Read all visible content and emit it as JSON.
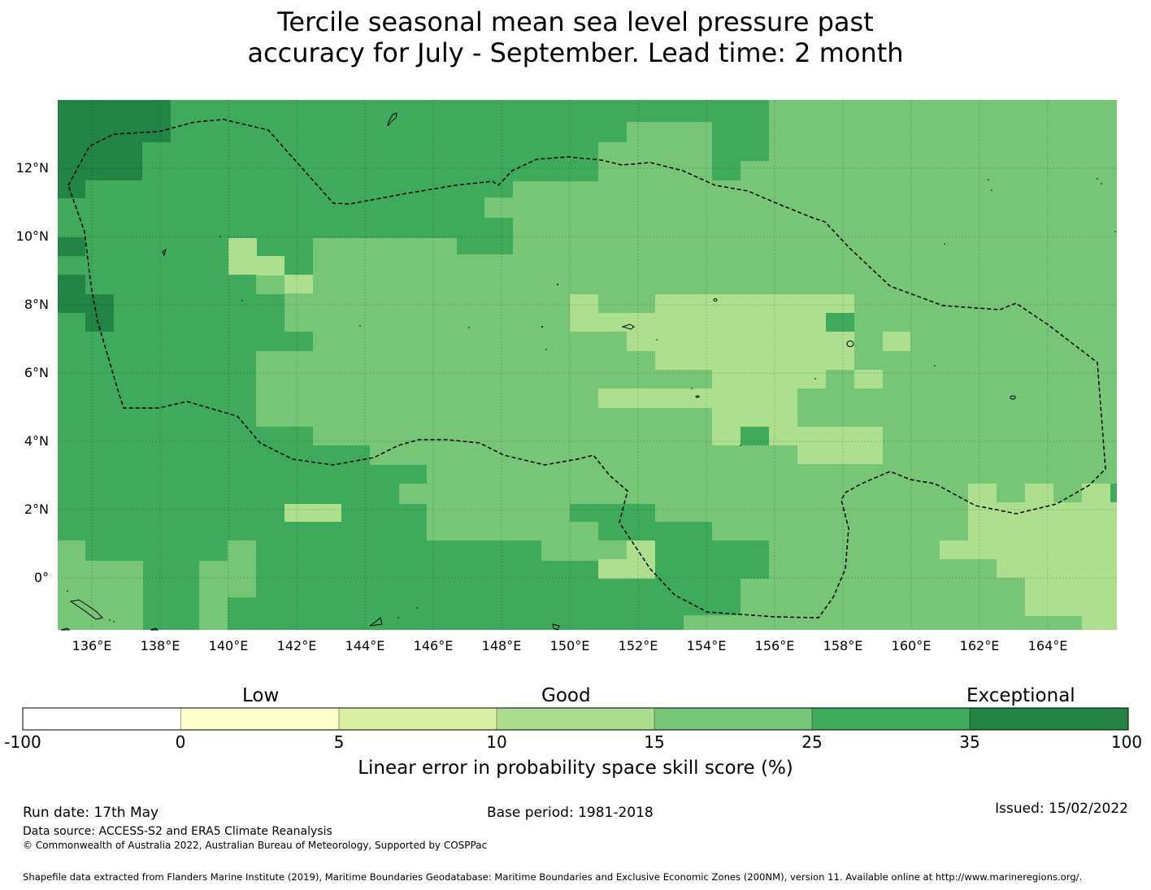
{
  "title": {
    "line1": "Tercile seasonal mean sea level pressure past",
    "line2": "accuracy for July - September. Lead time: 2 month"
  },
  "map": {
    "lat_labels": [
      "12°N",
      "10°N",
      "8°N",
      "6°N",
      "4°N",
      "2°N",
      "0°"
    ],
    "lon_labels": [
      "136°E",
      "138°E",
      "140°E",
      "142°E",
      "144°E",
      "146°E",
      "148°E",
      "150°E",
      "152°E",
      "154°E",
      "156°E",
      "158°E",
      "160°E",
      "162°E",
      "164°E"
    ],
    "background_color": "#77c577",
    "regions": [
      {
        "level": "good_plus",
        "color": "#3fa95c"
      },
      {
        "level": "good",
        "color": "#77c577"
      },
      {
        "level": "low_good",
        "color": "#addf8e"
      },
      {
        "level": "exceptional",
        "color": "#228546"
      }
    ]
  },
  "legend": {
    "categories": [
      "Low",
      "Good",
      "Exceptional"
    ],
    "ticks": [
      "-100",
      "0",
      "5",
      "10",
      "15",
      "25",
      "35",
      "100"
    ],
    "colors": [
      "#ffffff",
      "#ffffcc",
      "#d9f0a3",
      "#addd8e",
      "#78c679",
      "#41ab5d",
      "#238443"
    ],
    "label": "Linear error in probability space skill score (%)"
  },
  "footer": {
    "run_date": "Run date: 17th May",
    "base_period": "Base period: 1981-2018",
    "issued": "Issued: 15/02/2022",
    "data_source": "Data source: ACCESS-S2 and ERA5 Climate Reanalysis",
    "copyright": "© Commonwealth of Australia 2022, Australian Bureau of Meteorology, Supported by COSPPac",
    "shapefile": "Shapefile data extracted from Flanders Marine Institute (2019), Maritime Boundaries Geodatabase: Maritime Boundaries and Exclusive Economic Zones (200NM), version 11. Available online at http://www.marineregions.org/."
  }
}
